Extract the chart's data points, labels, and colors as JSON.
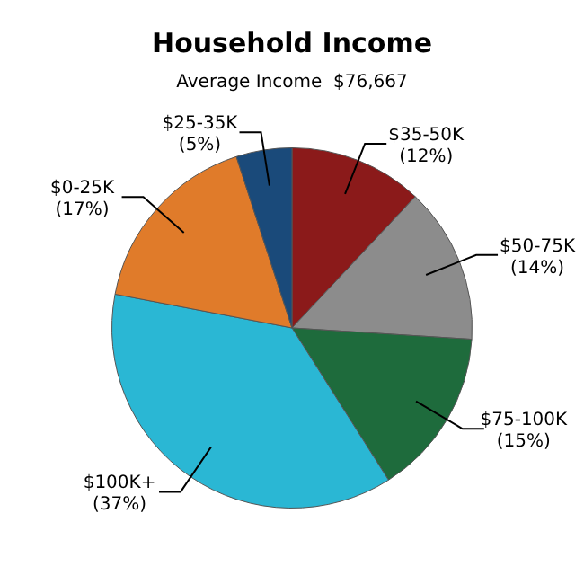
{
  "chart_data": {
    "type": "pie",
    "title": "Household Income",
    "subtitle": "Average Income  $76,667",
    "categories": [
      "$35-50K",
      "$50-75K",
      "$75-100K",
      "$100K+",
      "$0-25K",
      "$25-35K"
    ],
    "values": [
      12,
      14,
      15,
      37,
      17,
      5
    ],
    "value_labels": [
      "(12%)",
      "(14%)",
      "(15%)",
      "(37%)",
      "(17%)",
      "(5%)"
    ],
    "colors": [
      "#8b1a1a",
      "#8c8c8c",
      "#1e6b3c",
      "#2ab7d4",
      "#e07b2a",
      "#1a4a7a"
    ],
    "legend": false
  }
}
